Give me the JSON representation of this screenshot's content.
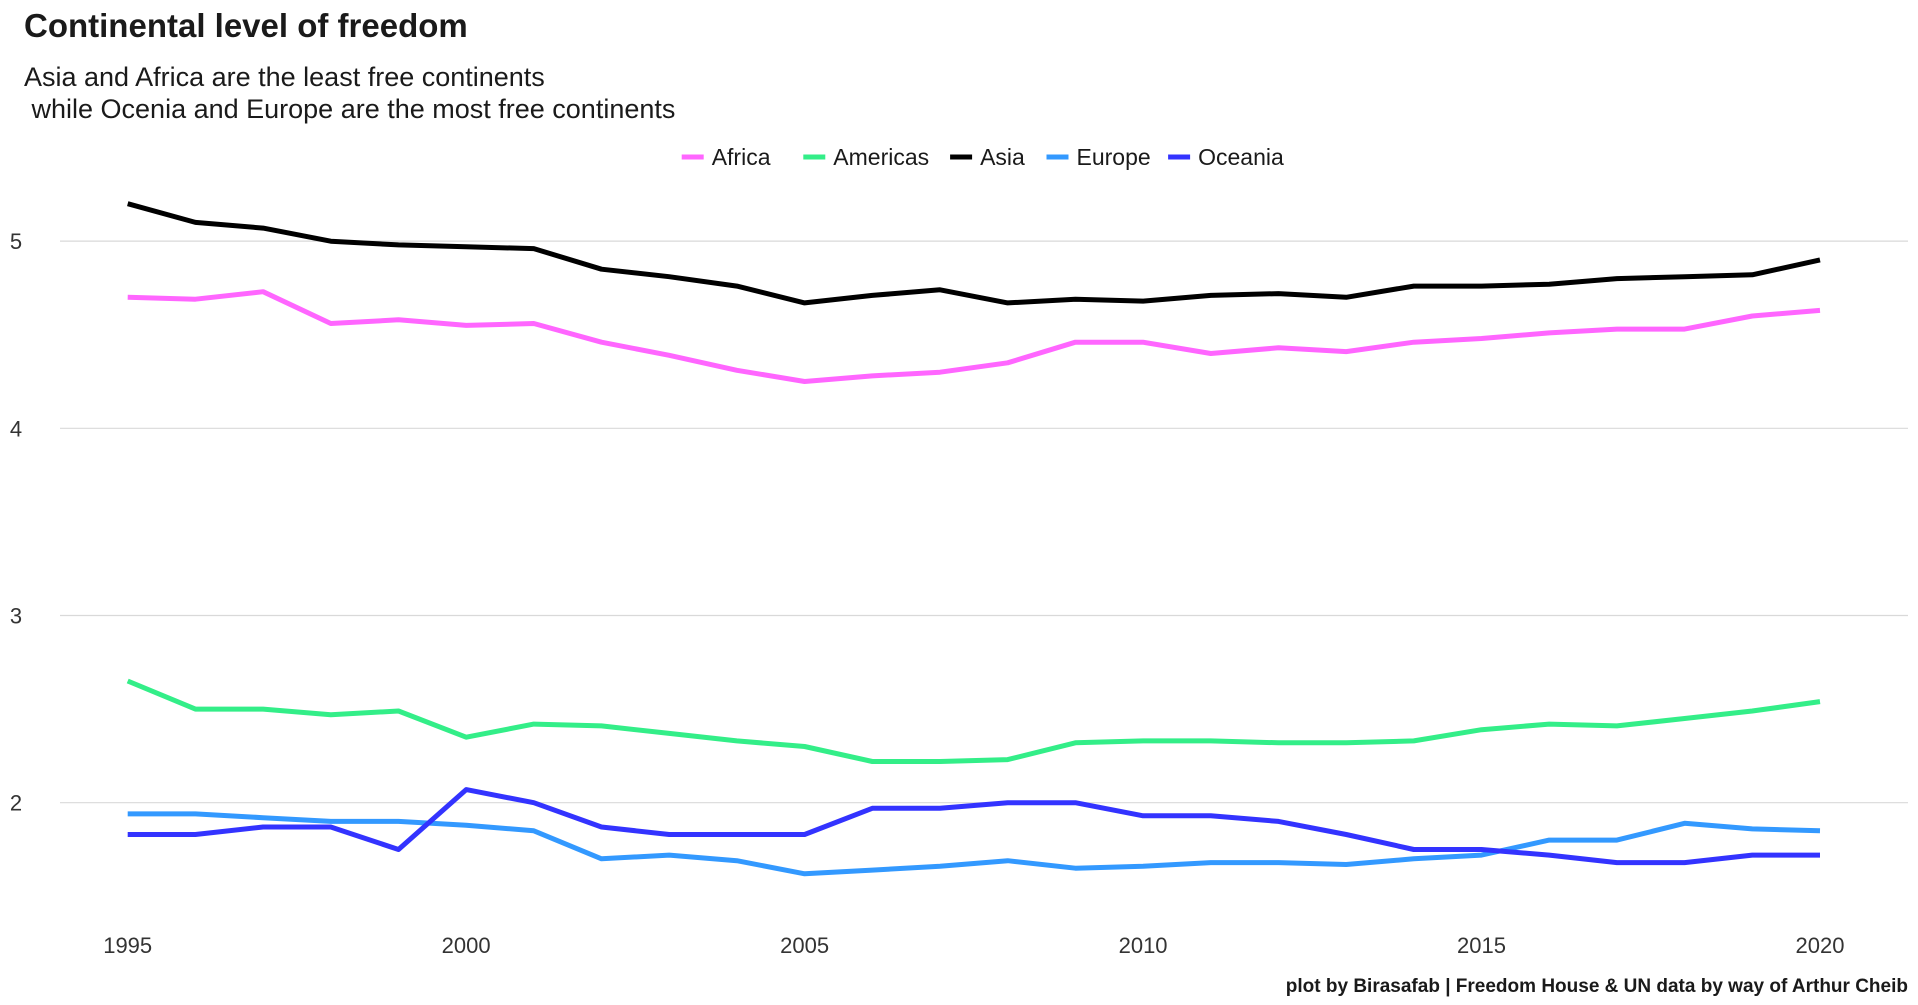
{
  "chart_data": {
    "type": "line",
    "title": "Continental level of freedom",
    "subtitle_lines": [
      "Asia and Africa are the least free continents",
      " while Ocenia and Europe are the most free continents"
    ],
    "caption": "plot by Birasafab | Freedom House & UN data by way of Arthur Cheib",
    "xlabel": "",
    "ylabel": "",
    "x": [
      1995,
      1996,
      1997,
      1998,
      1999,
      2000,
      2001,
      2002,
      2003,
      2004,
      2005,
      2006,
      2007,
      2008,
      2009,
      2010,
      2011,
      2012,
      2013,
      2014,
      2015,
      2016,
      2017,
      2018,
      2019,
      2020
    ],
    "x_ticks": [
      1995,
      2000,
      2005,
      2010,
      2015,
      2020
    ],
    "y_ticks": [
      2,
      3,
      4,
      5
    ],
    "ylim": [
      1.4,
      5.3
    ],
    "grid": true,
    "legend_position": "top",
    "series": [
      {
        "name": "Africa",
        "color": "#ff66ff",
        "values": [
          4.7,
          4.69,
          4.73,
          4.56,
          4.58,
          4.55,
          4.56,
          4.46,
          4.39,
          4.31,
          4.25,
          4.28,
          4.3,
          4.35,
          4.46,
          4.46,
          4.4,
          4.43,
          4.41,
          4.46,
          4.48,
          4.51,
          4.53,
          4.53,
          4.6,
          4.63
        ]
      },
      {
        "name": "Americas",
        "color": "#33ee88",
        "values": [
          2.65,
          2.5,
          2.5,
          2.47,
          2.49,
          2.35,
          2.42,
          2.41,
          2.37,
          2.33,
          2.3,
          2.22,
          2.22,
          2.23,
          2.32,
          2.33,
          2.33,
          2.32,
          2.32,
          2.33,
          2.39,
          2.42,
          2.41,
          2.45,
          2.49,
          2.54
        ]
      },
      {
        "name": "Asia",
        "color": "#000000",
        "values": [
          5.2,
          5.1,
          5.07,
          5.0,
          4.98,
          4.97,
          4.96,
          4.85,
          4.81,
          4.76,
          4.67,
          4.71,
          4.74,
          4.67,
          4.69,
          4.68,
          4.71,
          4.72,
          4.7,
          4.76,
          4.76,
          4.77,
          4.8,
          4.81,
          4.82,
          4.9
        ]
      },
      {
        "name": "Europe",
        "color": "#3399ff",
        "values": [
          1.94,
          1.94,
          1.92,
          1.9,
          1.9,
          1.88,
          1.85,
          1.7,
          1.72,
          1.69,
          1.62,
          1.64,
          1.66,
          1.69,
          1.65,
          1.66,
          1.68,
          1.68,
          1.67,
          1.7,
          1.72,
          1.8,
          1.8,
          1.89,
          1.86,
          1.85
        ]
      },
      {
        "name": "Oceania",
        "color": "#3333ff",
        "values": [
          1.83,
          1.83,
          1.87,
          1.87,
          1.75,
          2.07,
          2.0,
          1.87,
          1.83,
          1.83,
          1.83,
          1.97,
          1.97,
          2.0,
          2.0,
          1.93,
          1.93,
          1.9,
          1.83,
          1.75,
          1.75,
          1.72,
          1.68,
          1.68,
          1.72,
          1.72
        ]
      }
    ]
  }
}
